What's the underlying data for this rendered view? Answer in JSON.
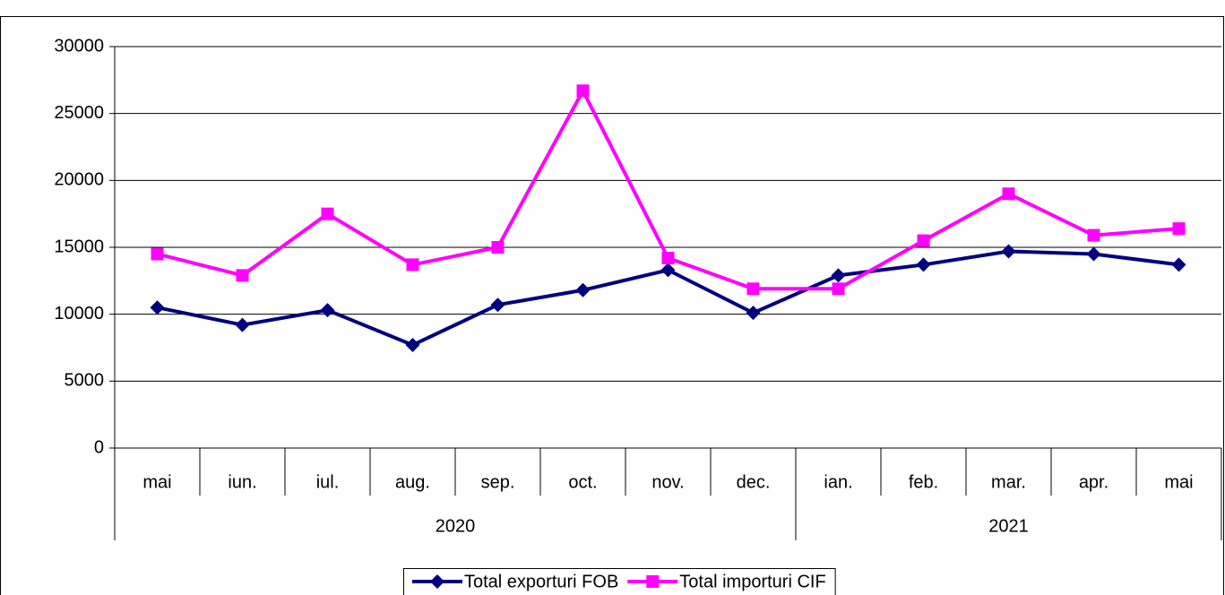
{
  "chart_data": {
    "type": "line",
    "categories": [
      "mai",
      "iun.",
      "iul.",
      "aug.",
      "sep.",
      "oct.",
      "nov.",
      "dec.",
      "ian.",
      "feb.",
      "mar.",
      "apr.",
      "mai"
    ],
    "groups": [
      {
        "label": "2020",
        "size": 8
      },
      {
        "label": "2021",
        "size": 5
      }
    ],
    "series": [
      {
        "name": "Total exporturi FOB",
        "color": "#000080",
        "marker": "diamond",
        "values": [
          10500,
          9200,
          10300,
          7700,
          10700,
          11800,
          13300,
          10100,
          12900,
          13700,
          14700,
          14500,
          13700
        ]
      },
      {
        "name": "Total importuri CIF",
        "color": "#ff00ff",
        "marker": "square",
        "values": [
          14500,
          12900,
          17500,
          13700,
          15000,
          26700,
          14200,
          11900,
          11900,
          15500,
          19000,
          15900,
          16400
        ]
      }
    ],
    "ylim": [
      0,
      30000
    ],
    "yticks": [
      0,
      5000,
      10000,
      15000,
      20000,
      25000,
      30000
    ],
    "grid": true,
    "legend": "bottom"
  }
}
